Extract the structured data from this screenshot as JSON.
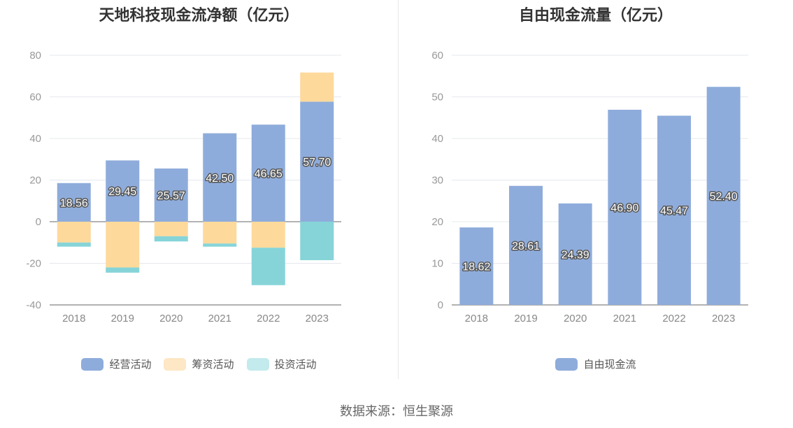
{
  "source": "数据来源：恒生聚源",
  "colors": {
    "operating": "#8eacdb",
    "financing": "#fdd99b",
    "investing": "#86d4d8",
    "freecf": "#8eacdb"
  },
  "chart_data": [
    {
      "type": "bar",
      "title": "天地科技现金流净额（亿元）",
      "categories": [
        "2018",
        "2019",
        "2020",
        "2021",
        "2022",
        "2023"
      ],
      "stacked": true,
      "ylim": [
        -40,
        80
      ],
      "yticks": [
        "-40",
        "-20",
        "0",
        "20",
        "40",
        "60",
        "80"
      ],
      "grid": true,
      "legend_position": "bottom",
      "series": [
        {
          "name": "经营活动",
          "values": [
            18.56,
            29.45,
            25.57,
            42.5,
            46.65,
            57.7
          ],
          "labels": [
            "18.56",
            "29.45",
            "25.57",
            "42.50",
            "46.65",
            "57.70"
          ]
        },
        {
          "name": "筹资活动",
          "values": [
            -10.0,
            -22.0,
            -7.0,
            -10.5,
            -12.5,
            14.0
          ]
        },
        {
          "name": "投资活动",
          "values": [
            -2.0,
            -2.5,
            -2.5,
            -1.5,
            -18.0,
            -18.5
          ]
        }
      ]
    },
    {
      "type": "bar",
      "title": "自由现金流量（亿元）",
      "categories": [
        "2018",
        "2019",
        "2020",
        "2021",
        "2022",
        "2023"
      ],
      "ylim": [
        0,
        60
      ],
      "yticks": [
        "0",
        "10",
        "20",
        "30",
        "40",
        "50",
        "60"
      ],
      "grid": true,
      "legend_position": "bottom",
      "series": [
        {
          "name": "自由现金流",
          "values": [
            18.62,
            28.61,
            24.39,
            46.9,
            45.47,
            52.4
          ],
          "labels": [
            "18.62",
            "28.61",
            "24.39",
            "46.90",
            "45.47",
            "52.40"
          ]
        }
      ]
    }
  ]
}
